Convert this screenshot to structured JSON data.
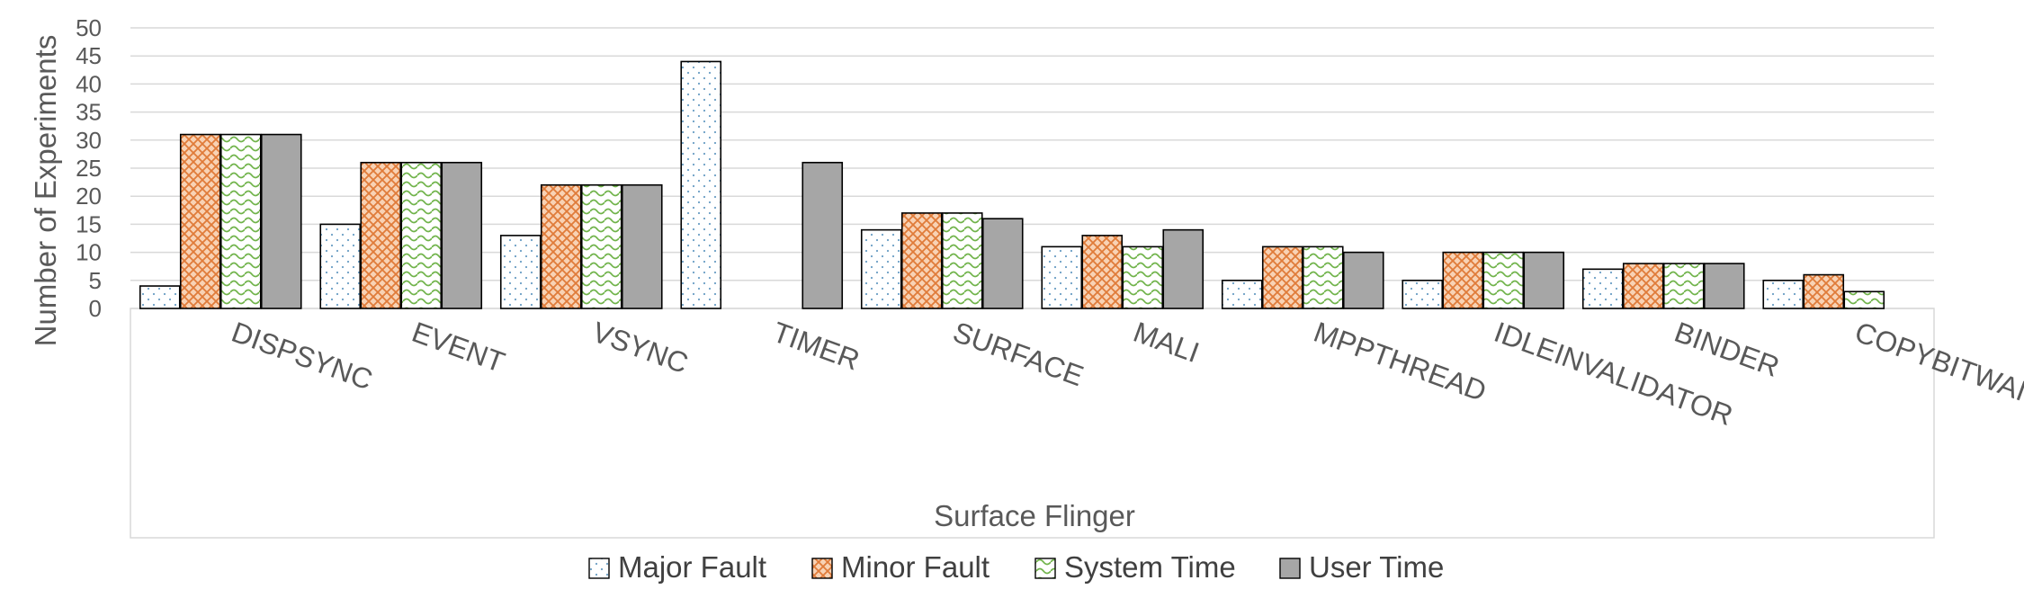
{
  "chart_data": {
    "type": "bar",
    "xlabel": "Surface Flinger",
    "ylabel": "Number of Experiments",
    "ylim": [
      0,
      50
    ],
    "ytick_step": 5,
    "grid": true,
    "legend_position": "bottom",
    "categories": [
      "DISPSYNC",
      "EVENT",
      "VSYNC",
      "TIMER",
      "SURFACE",
      "MALI",
      "MPPTHREAD",
      "IDLEINVALIDATOR",
      "BINDER",
      "COPYBITWAIT"
    ],
    "series": [
      {
        "name": "Major Fault",
        "pattern": "dots",
        "color": "#ffffff",
        "accent": "#7aaed0",
        "values": [
          4,
          15,
          13,
          44,
          14,
          11,
          5,
          5,
          7,
          5
        ]
      },
      {
        "name": "Minor Fault",
        "pattern": "diamonds",
        "color": "#f6c9a7",
        "accent": "#e07b39",
        "values": [
          31,
          26,
          22,
          0,
          17,
          13,
          11,
          10,
          8,
          6
        ]
      },
      {
        "name": "System Time",
        "pattern": "waves",
        "color": "#ffffff",
        "accent": "#70b34a",
        "values": [
          31,
          26,
          22,
          0,
          17,
          11,
          11,
          10,
          8,
          3
        ]
      },
      {
        "name": "User Time",
        "pattern": "solid",
        "color": "#a6a6a6",
        "accent": "#a6a6a6",
        "values": [
          31,
          26,
          22,
          26,
          16,
          14,
          10,
          10,
          8,
          0
        ]
      }
    ]
  }
}
